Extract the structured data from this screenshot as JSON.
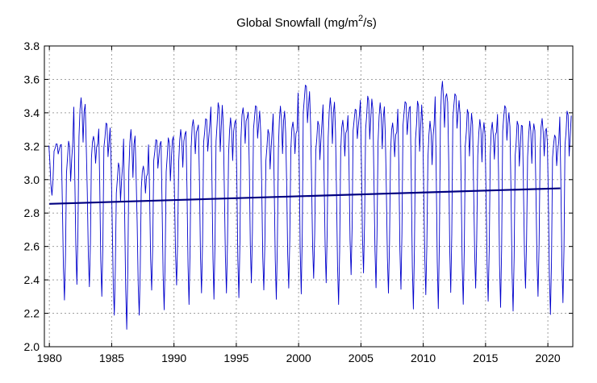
{
  "chart_data": {
    "type": "line",
    "title": {
      "prefix": "Global Snowfall (mg/m",
      "superscript": "2",
      "suffix": "/s)"
    },
    "xlabel": "",
    "ylabel": "",
    "xlim": [
      1979.6,
      2022.0
    ],
    "ylim": [
      2.0,
      3.8
    ],
    "x_ticks": [
      1980,
      1985,
      1990,
      1995,
      2000,
      2005,
      2010,
      2015,
      2020
    ],
    "x_tick_labels": [
      "1980",
      "1985",
      "1990",
      "1995",
      "2000",
      "2005",
      "2010",
      "2015",
      "2020"
    ],
    "y_ticks": [
      2.0,
      2.2,
      2.4,
      2.6,
      2.8,
      3.0,
      3.2,
      3.4,
      3.6,
      3.8
    ],
    "y_tick_labels": [
      "2.0",
      "2.2",
      "2.4",
      "2.6",
      "2.8",
      "3.0",
      "3.2",
      "3.4",
      "3.6",
      "3.8"
    ],
    "grid": true,
    "series": [
      {
        "role": "monthly",
        "color": "#0000cc",
        "x_start": 1979.96,
        "x_step": 0.08333,
        "monthly_cycle_template": [
          0.95,
          0.62,
          0.22,
          0.02,
          0.3,
          0.82,
          0.92,
          1.0,
          0.95,
          0.78,
          0.9,
          0.96
        ],
        "annual_max": [
          3.22,
          3.23,
          3.49,
          3.28,
          3.36,
          3.1,
          3.3,
          3.1,
          3.26,
          3.25,
          3.3,
          3.38,
          3.39,
          3.46,
          3.37,
          3.45,
          3.47,
          3.3,
          3.44,
          3.36,
          3.6,
          3.35,
          3.49,
          3.37,
          3.45,
          3.5,
          3.46,
          3.35,
          3.5,
          3.47,
          3.35,
          3.6,
          3.55,
          3.42,
          3.36,
          3.35,
          3.48,
          3.35,
          3.35,
          3.37,
          3.3,
          3.41
        ],
        "annual_min": [
          2.9,
          2.26,
          2.35,
          2.34,
          2.28,
          2.17,
          2.08,
          2.17,
          2.32,
          2.2,
          2.35,
          2.23,
          2.3,
          2.26,
          2.3,
          2.27,
          2.36,
          2.32,
          2.26,
          2.33,
          2.29,
          2.39,
          2.36,
          2.23,
          2.41,
          2.42,
          2.33,
          2.3,
          2.32,
          2.2,
          2.29,
          2.2,
          2.3,
          2.23,
          2.33,
          2.25,
          2.21,
          2.19,
          2.33,
          2.28,
          2.17,
          2.24
        ]
      },
      {
        "role": "linear-trend",
        "color": "#000080",
        "x": [
          1980.0,
          2021.0
        ],
        "y": [
          2.855,
          2.948
        ]
      }
    ]
  }
}
